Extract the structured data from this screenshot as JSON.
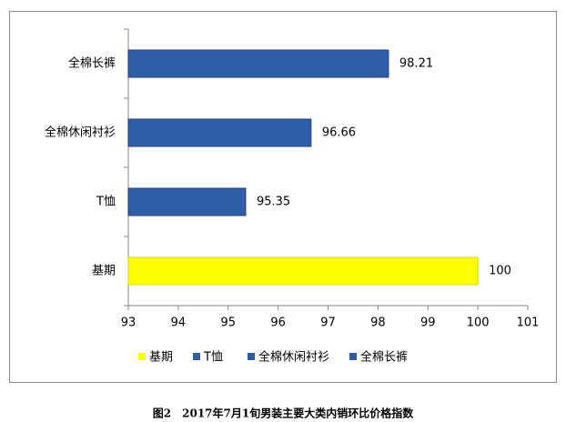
{
  "chart_data": {
    "type": "bar",
    "orientation": "horizontal",
    "categories": [
      "基期",
      "T恤",
      "全棉休闲衬衫",
      "全棉长裤"
    ],
    "values": [
      100,
      95.35,
      96.66,
      98.21
    ],
    "colors": [
      "#ffff00",
      "#2e5ea8",
      "#2e5ea8",
      "#2e5ea8"
    ],
    "xlim": [
      93,
      101
    ],
    "xticks": [
      93,
      94,
      95,
      96,
      97,
      98,
      99,
      100,
      101
    ],
    "caption": "图2　2017年7月1旬男装主要大类内销环比价格指数"
  }
}
